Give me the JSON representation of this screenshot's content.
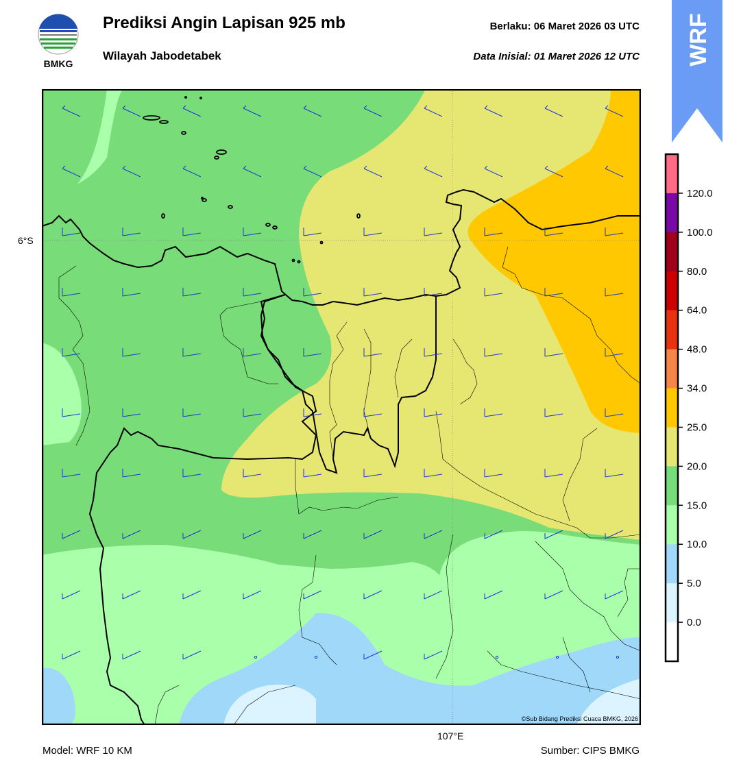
{
  "header": {
    "title": "Prediksi Angin Lapisan 925 mb",
    "subtitle": "Wilayah Jabodetabek",
    "valid_label": "Berlaku:  06 Maret 2026 03 UTC",
    "init_label": "Data Inisial:  01 Maret 2026 12 UTC"
  },
  "logo": {
    "text": "BMKG",
    "icon": "bmkg-logo-icon"
  },
  "badge": {
    "text": "WRF",
    "color": "#6a9cf5"
  },
  "map": {
    "lat_tick": "6°S",
    "lon_tick": "107°E",
    "copyright": "©Sub Bidang Prediksi Cuaca BMKG, 2026",
    "wind_barb_color": "#1c33d6"
  },
  "footer": {
    "model": "Model: WRF 10 KM",
    "source": "Sumber: CIPS BMKG"
  },
  "legend": {
    "unit_ticks": [
      "120.0",
      "100.0",
      "80.0",
      "64.0",
      "48.0",
      "34.0",
      "25.0",
      "20.0",
      "15.0",
      "10.0",
      "5.0",
      "0.0"
    ],
    "colors": [
      "#ff6b86",
      "#7a0aa8",
      "#a0001a",
      "#cc0000",
      "#e83212",
      "#f58549",
      "#ffc800",
      "#e6e673",
      "#78dc78",
      "#aaffaa",
      "#a0d8fa",
      "#dcf4ff",
      "#ffffff"
    ]
  }
}
